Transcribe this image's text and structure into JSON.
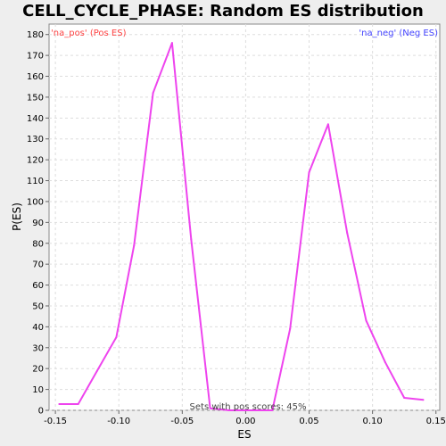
{
  "chart_data": {
    "type": "line",
    "title": "CELL_CYCLE_PHASE: Random ES distribution",
    "xlabel": "ES",
    "ylabel": "P(ES)",
    "xlim": [
      -0.155,
      0.153
    ],
    "ylim": [
      0,
      185
    ],
    "grid": true,
    "x_ticks": [
      -0.15,
      -0.1,
      -0.05,
      0.0,
      0.05,
      0.1,
      0.15
    ],
    "x_tick_labels": [
      "-0.15",
      "-0.10",
      "-0.05",
      "0.00",
      "0.05",
      "0.10",
      "0.15"
    ],
    "y_ticks": [
      0,
      10,
      20,
      30,
      40,
      50,
      60,
      70,
      80,
      90,
      100,
      110,
      120,
      130,
      140,
      150,
      160,
      170,
      180
    ],
    "legend_pos": "'na_pos' (Pos ES)",
    "legend_neg": "'na_neg' (Neg ES)",
    "legend_pos_color": "#ff4444",
    "legend_neg_color": "#4444ff",
    "footnote": "Sets with pos scores: 45%",
    "series": [
      {
        "color": "#ee44ee",
        "x": [
          -0.147,
          -0.132,
          -0.117,
          -0.102,
          -0.088,
          -0.073,
          -0.058,
          -0.043,
          -0.028,
          -0.013,
          0.006,
          0.021,
          0.035,
          0.05,
          0.065,
          0.08,
          0.095,
          0.11,
          0.125,
          0.14
        ],
        "y": [
          3,
          3,
          19,
          35,
          79,
          152,
          176,
          82,
          1,
          0,
          0,
          0,
          39,
          114,
          137,
          85,
          43,
          23,
          6,
          5
        ]
      }
    ]
  }
}
